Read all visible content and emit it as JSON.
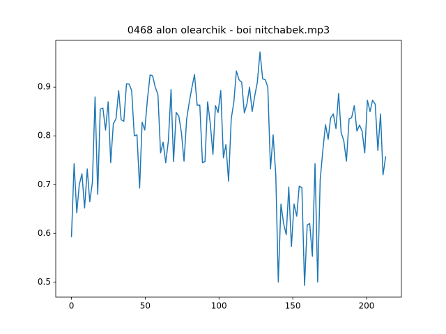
{
  "chart_data": {
    "type": "line",
    "title": "0468 alon olearchik - boi nitchabek.mp3",
    "x": [
      0,
      1.8,
      3.6,
      5.3,
      7.1,
      8.9,
      10.7,
      12.4,
      14.2,
      16.0,
      17.8,
      19.5,
      21.3,
      23.1,
      24.9,
      26.6,
      28.4,
      30.2,
      32.0,
      33.7,
      35.5,
      37.3,
      39.1,
      40.8,
      42.6,
      44.4,
      46.2,
      47.9,
      49.7,
      51.5,
      53.3,
      55.0,
      56.8,
      58.6,
      60.4,
      62.1,
      63.9,
      65.7,
      67.5,
      69.2,
      71.0,
      72.8,
      74.6,
      76.3,
      78.1,
      79.9,
      81.7,
      83.4,
      85.2,
      87.0,
      88.8,
      90.5,
      92.3,
      94.1,
      95.9,
      97.6,
      99.4,
      101.2,
      103.0,
      104.7,
      106.5,
      108.3,
      110.1,
      111.8,
      113.6,
      115.4,
      117.2,
      118.9,
      120.7,
      122.5,
      124.3,
      126.0,
      127.8,
      129.6,
      131.4,
      133.1,
      134.9,
      136.7,
      138.5,
      140.2,
      142.0,
      143.8,
      145.6,
      147.3,
      149.1,
      150.9,
      152.7,
      154.4,
      156.2,
      158.0,
      159.8,
      161.5,
      163.3,
      165.1,
      166.9,
      168.6,
      170.4,
      172.2,
      174.0,
      175.7,
      177.5,
      179.3,
      181.1,
      182.8,
      184.6,
      186.4,
      188.2,
      189.9,
      191.7,
      193.5,
      195.3,
      197.0,
      198.8,
      200.6,
      202.4,
      204.1,
      205.9,
      207.7,
      209.5,
      211.2,
      213.0
    ],
    "series": [
      {
        "color": "#1f77b4",
        "values": [
          0.592,
          0.743,
          0.642,
          0.7,
          0.722,
          0.652,
          0.732,
          0.665,
          0.705,
          0.88,
          0.68,
          0.855,
          0.857,
          0.812,
          0.87,
          0.745,
          0.825,
          0.835,
          0.893,
          0.833,
          0.83,
          0.907,
          0.906,
          0.893,
          0.8,
          0.802,
          0.693,
          0.828,
          0.812,
          0.875,
          0.925,
          0.923,
          0.9,
          0.885,
          0.765,
          0.787,
          0.745,
          0.79,
          0.895,
          0.747,
          0.848,
          0.84,
          0.805,
          0.748,
          0.835,
          0.87,
          0.9,
          0.926,
          0.863,
          0.863,
          0.745,
          0.747,
          0.87,
          0.825,
          0.762,
          0.862,
          0.848,
          0.893,
          0.755,
          0.782,
          0.707,
          0.835,
          0.87,
          0.933,
          0.915,
          0.91,
          0.847,
          0.865,
          0.9,
          0.85,
          0.883,
          0.91,
          0.972,
          0.917,
          0.915,
          0.9,
          0.732,
          0.802,
          0.72,
          0.5,
          0.66,
          0.62,
          0.597,
          0.695,
          0.573,
          0.66,
          0.635,
          0.697,
          0.693,
          0.493,
          0.617,
          0.62,
          0.553,
          0.743,
          0.5,
          0.71,
          0.77,
          0.823,
          0.793,
          0.837,
          0.845,
          0.815,
          0.887,
          0.807,
          0.79,
          0.748,
          0.835,
          0.837,
          0.862,
          0.81,
          0.822,
          0.81,
          0.765,
          0.873,
          0.85,
          0.873,
          0.865,
          0.77,
          0.845,
          0.72,
          0.758
        ]
      }
    ],
    "xlim": [
      -10.65,
      223.65
    ],
    "ylim": [
      0.469,
      0.996
    ],
    "xticks": [
      0,
      50,
      100,
      150,
      200
    ],
    "yticks": [
      0.5,
      0.6,
      0.7,
      0.8,
      0.9
    ]
  }
}
